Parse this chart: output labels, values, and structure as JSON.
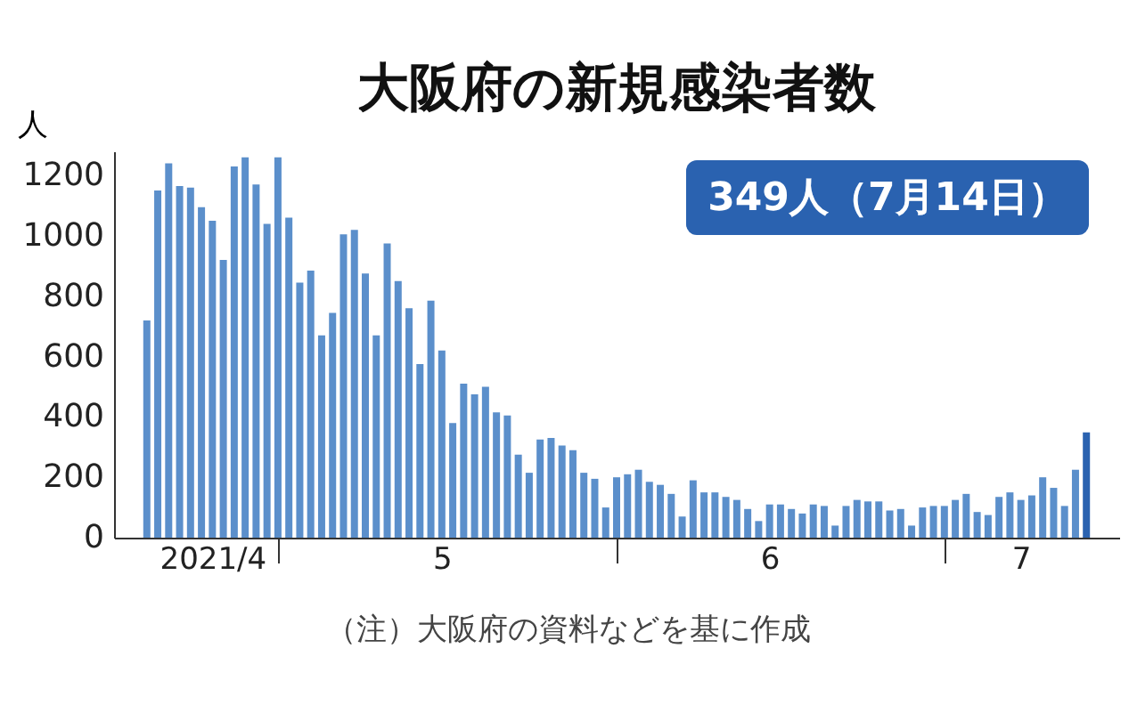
{
  "chart_data": {
    "type": "bar",
    "title": "大阪府の新規感染者数",
    "ylabel": "人",
    "annotations": [
      "349人（7月14日）",
      "（注）大阪府の資料などを基に作成"
    ],
    "x": [
      "2021-04-19",
      "2021-04-20",
      "2021-04-21",
      "2021-04-22",
      "2021-04-23",
      "2021-04-24",
      "2021-04-25",
      "2021-04-26",
      "2021-04-27",
      "2021-04-28",
      "2021-04-29",
      "2021-04-30",
      "2021-05-01",
      "2021-05-02",
      "2021-05-03",
      "2021-05-04",
      "2021-05-05",
      "2021-05-06",
      "2021-05-07",
      "2021-05-08",
      "2021-05-09",
      "2021-05-10",
      "2021-05-11",
      "2021-05-12",
      "2021-05-13",
      "2021-05-14",
      "2021-05-15",
      "2021-05-16",
      "2021-05-17",
      "2021-05-18",
      "2021-05-19",
      "2021-05-20",
      "2021-05-21",
      "2021-05-22",
      "2021-05-23",
      "2021-05-24",
      "2021-05-25",
      "2021-05-26",
      "2021-05-27",
      "2021-05-28",
      "2021-05-29",
      "2021-05-30",
      "2021-05-31",
      "2021-06-01",
      "2021-06-02",
      "2021-06-03",
      "2021-06-04",
      "2021-06-05",
      "2021-06-06",
      "2021-06-07",
      "2021-06-08",
      "2021-06-09",
      "2021-06-10",
      "2021-06-11",
      "2021-06-12",
      "2021-06-13",
      "2021-06-14",
      "2021-06-15",
      "2021-06-16",
      "2021-06-17",
      "2021-06-18",
      "2021-06-19",
      "2021-06-20",
      "2021-06-21",
      "2021-06-22",
      "2021-06-23",
      "2021-06-24",
      "2021-06-25",
      "2021-06-26",
      "2021-06-27",
      "2021-06-28",
      "2021-06-29",
      "2021-06-30",
      "2021-07-01",
      "2021-07-02",
      "2021-07-03",
      "2021-07-04",
      "2021-07-05",
      "2021-07-06",
      "2021-07-07",
      "2021-07-08",
      "2021-07-09",
      "2021-07-10",
      "2021-07-11",
      "2021-07-12",
      "2021-07-13",
      "2021-07-14"
    ],
    "values": [
      720,
      1150,
      1240,
      1165,
      1160,
      1095,
      1050,
      920,
      1230,
      1260,
      1170,
      1040,
      1260,
      1060,
      845,
      885,
      670,
      745,
      1005,
      1020,
      875,
      670,
      975,
      850,
      760,
      575,
      785,
      620,
      380,
      510,
      475,
      500,
      415,
      405,
      275,
      215,
      325,
      330,
      305,
      290,
      215,
      195,
      100,
      200,
      210,
      225,
      185,
      175,
      145,
      70,
      190,
      150,
      150,
      135,
      125,
      95,
      55,
      110,
      110,
      95,
      80,
      110,
      105,
      40,
      105,
      125,
      120,
      120,
      90,
      95,
      40,
      100,
      105,
      105,
      125,
      145,
      85,
      75,
      135,
      150,
      125,
      140,
      200,
      165,
      105,
      225,
      349
    ],
    "colors": [
      "#5b8fcb",
      "#5b8fcb",
      "#5b8fcb",
      "#5b8fcb",
      "#5b8fcb",
      "#5b8fcb",
      "#5b8fcb",
      "#5b8fcb",
      "#5b8fcb",
      "#5b8fcb",
      "#5b8fcb",
      "#5b8fcb",
      "#5b8fcb",
      "#5b8fcb",
      "#5b8fcb",
      "#5b8fcb",
      "#5b8fcb",
      "#5b8fcb",
      "#5b8fcb",
      "#5b8fcb",
      "#5b8fcb",
      "#5b8fcb",
      "#5b8fcb",
      "#5b8fcb",
      "#5b8fcb",
      "#5b8fcb",
      "#5b8fcb",
      "#5b8fcb",
      "#5b8fcb",
      "#5b8fcb",
      "#5b8fcb",
      "#5b8fcb",
      "#5b8fcb",
      "#5b8fcb",
      "#5b8fcb",
      "#5b8fcb",
      "#5b8fcb",
      "#5b8fcb",
      "#5b8fcb",
      "#5b8fcb",
      "#5b8fcb",
      "#5b8fcb",
      "#5b8fcb",
      "#5b8fcb",
      "#5b8fcb",
      "#5b8fcb",
      "#5b8fcb",
      "#5b8fcb",
      "#5b8fcb",
      "#5b8fcb",
      "#5b8fcb",
      "#5b8fcb",
      "#5b8fcb",
      "#5b8fcb",
      "#5b8fcb",
      "#5b8fcb",
      "#5b8fcb",
      "#5b8fcb",
      "#5b8fcb",
      "#5b8fcb",
      "#5b8fcb",
      "#5b8fcb",
      "#5b8fcb",
      "#5b8fcb",
      "#5b8fcb",
      "#5b8fcb",
      "#5b8fcb",
      "#5b8fcb",
      "#5b8fcb",
      "#5b8fcb",
      "#5b8fcb",
      "#5b8fcb",
      "#5b8fcb",
      "#5b8fcb",
      "#5b8fcb",
      "#5b8fcb",
      "#5b8fcb",
      "#5b8fcb",
      "#5b8fcb",
      "#5b8fcb",
      "#5b8fcb",
      "#5b8fcb",
      "#5b8fcb",
      "#5b8fcb",
      "#5b8fcb",
      "#5b8fcb",
      "#2a62b0"
    ],
    "xlim": [
      "2021-04-16",
      "2021-07-17"
    ],
    "xticks": [
      {
        "value": "2021-04-25",
        "label": "2021/4"
      },
      {
        "value": "2021-05-01",
        "label": null
      },
      {
        "value": "2021-05-16",
        "label": "5"
      },
      {
        "value": "2021-06-01",
        "label": null
      },
      {
        "value": "2021-06-15",
        "label": "6"
      },
      {
        "value": "2021-07-01",
        "label": null
      },
      {
        "value": "2021-07-08",
        "label": "7"
      }
    ],
    "ylim": [
      0,
      1280
    ],
    "yticks": [
      0,
      200,
      400,
      600,
      800,
      1000,
      1200
    ],
    "grid": false,
    "legend": false
  }
}
